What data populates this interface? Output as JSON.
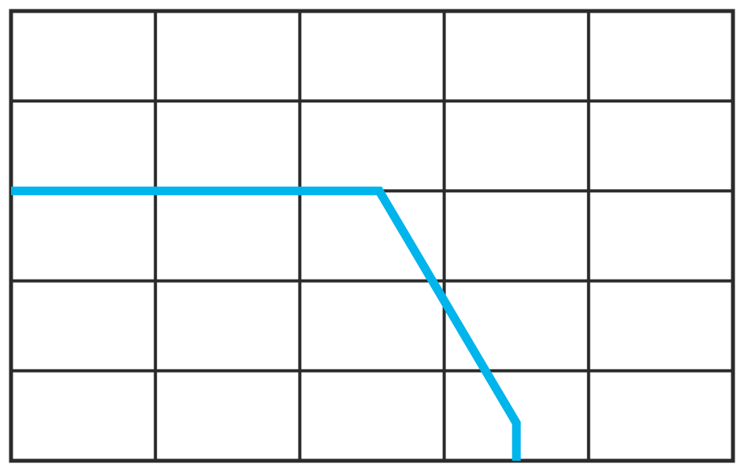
{
  "chart_data": {
    "type": "line",
    "title": "",
    "xlabel": "",
    "ylabel": "",
    "xlim": [
      0,
      5
    ],
    "ylim": [
      0,
      5
    ],
    "grid": true,
    "grid_divisions": {
      "x": 5,
      "y": 5
    },
    "series": [
      {
        "x": [
          0,
          2.55,
          3.5,
          3.5
        ],
        "y": [
          3,
          3,
          0.42,
          0
        ],
        "color": "#00b4ec"
      }
    ],
    "grid_color": "#2b2b2b"
  }
}
